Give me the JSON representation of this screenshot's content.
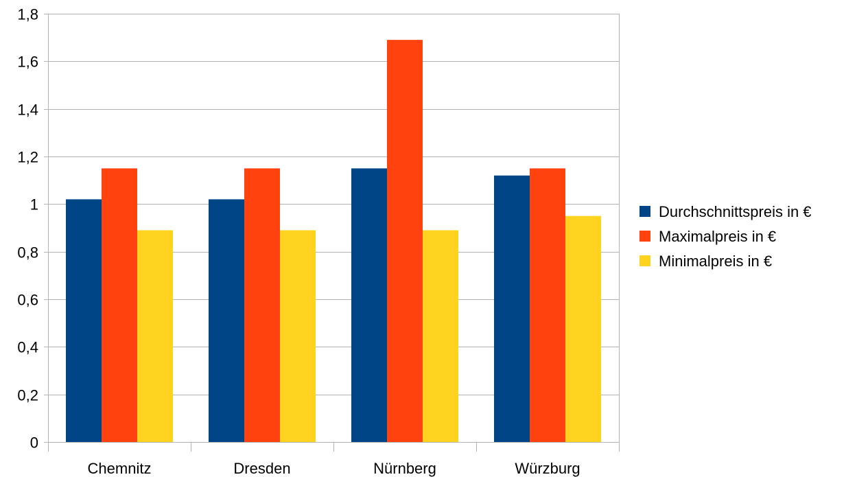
{
  "chart_data": {
    "type": "bar",
    "categories": [
      "Chemnitz",
      "Dresden",
      "Nürnberg",
      "Würzburg"
    ],
    "series": [
      {
        "name": "Durchschnittspreis in €",
        "color": "#004586",
        "values": [
          1.02,
          1.02,
          1.15,
          1.12
        ]
      },
      {
        "name": "Maximalpreis in €",
        "color": "#ff420e",
        "values": [
          1.15,
          1.15,
          1.69,
          1.15
        ]
      },
      {
        "name": "Minimalpreis in €",
        "color": "#ffd320",
        "values": [
          0.89,
          0.89,
          0.89,
          0.95
        ]
      }
    ],
    "ylim": [
      0,
      1.8
    ],
    "yticks": [
      0,
      0.2,
      0.4,
      0.6,
      0.8,
      1,
      1.2,
      1.4,
      1.6,
      1.8
    ],
    "ytick_labels": [
      "0",
      "0,2",
      "0,4",
      "0,6",
      "0,8",
      "1",
      "1,2",
      "1,4",
      "1,6",
      "1,8"
    ],
    "grid": true,
    "legend_position": "right",
    "title": "",
    "xlabel": "",
    "ylabel": ""
  }
}
